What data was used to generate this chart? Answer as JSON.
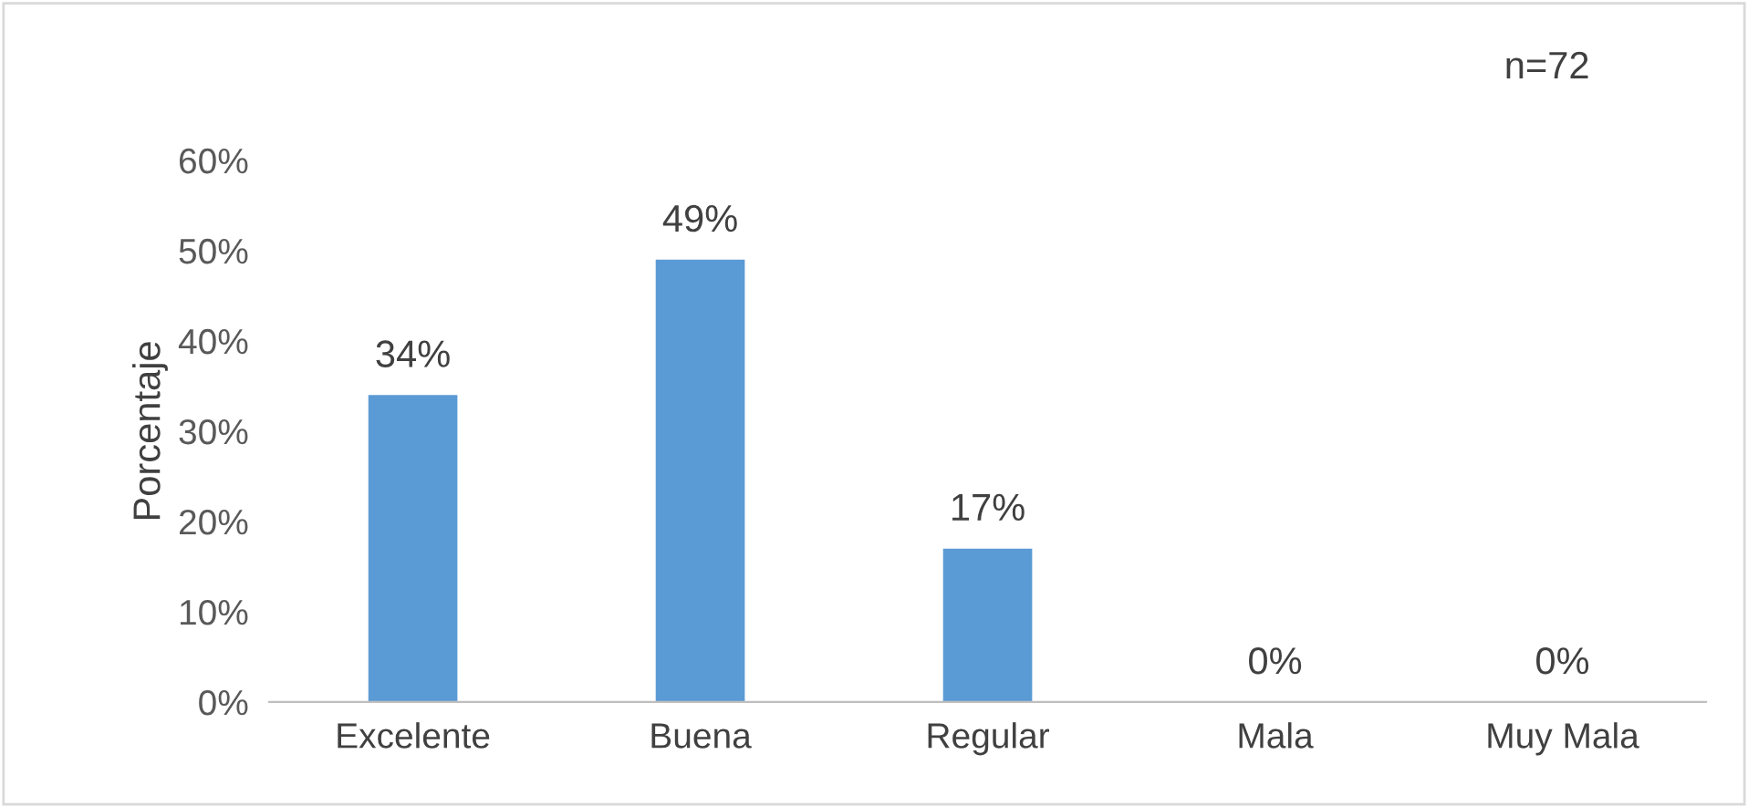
{
  "chart_data": {
    "type": "bar",
    "ylabel": "Porcentaje",
    "categories": [
      "Excelente",
      "Buena",
      "Regular",
      "Mala",
      "Muy Mala"
    ],
    "values": [
      34,
      49,
      17,
      0,
      0
    ],
    "color": "#5b9bd5",
    "value_labels": [
      "34%",
      "49%",
      "17%",
      "0%",
      "0%"
    ],
    "ylim": [
      0,
      60
    ],
    "yticks": [
      {
        "value": 0,
        "label": "0%"
      },
      {
        "value": 10,
        "label": "10%"
      },
      {
        "value": 20,
        "label": "20%"
      },
      {
        "value": 30,
        "label": "30%"
      },
      {
        "value": 40,
        "label": "40%"
      },
      {
        "value": 50,
        "label": "50%"
      },
      {
        "value": 60,
        "label": "60%"
      }
    ],
    "grid": false,
    "legend": false,
    "annotations": [
      "n=72"
    ]
  }
}
